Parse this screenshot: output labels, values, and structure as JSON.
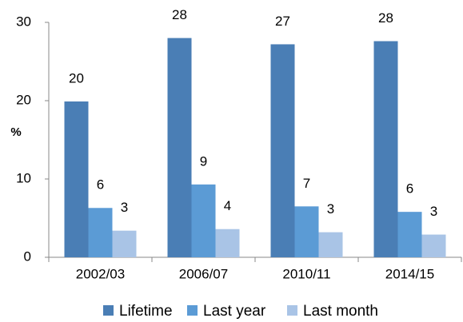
{
  "chart_data": {
    "type": "bar",
    "y_label": "%",
    "categories": [
      "2002/03",
      "2006/07",
      "2010/11",
      "2014/15"
    ],
    "series": [
      {
        "name": "Lifetime",
        "color": "#4a7eb5",
        "values": [
          19.9,
          28.0,
          27.2,
          27.6
        ],
        "value_labels": [
          "20",
          "28",
          "27",
          "28"
        ]
      },
      {
        "name": "Last year",
        "color": "#5b9bd5",
        "values": [
          6.3,
          9.3,
          6.5,
          5.8
        ],
        "value_labels": [
          "6",
          "9",
          "7",
          "6"
        ]
      },
      {
        "name": "Last month",
        "color": "#a9c4e6",
        "values": [
          3.4,
          3.6,
          3.2,
          2.9
        ],
        "value_labels": [
          "3",
          "4",
          "3",
          "3"
        ]
      }
    ],
    "ylim": [
      0,
      30
    ],
    "yticks": [
      0,
      10,
      20,
      30
    ],
    "grid": false,
    "legend": "bottom"
  }
}
